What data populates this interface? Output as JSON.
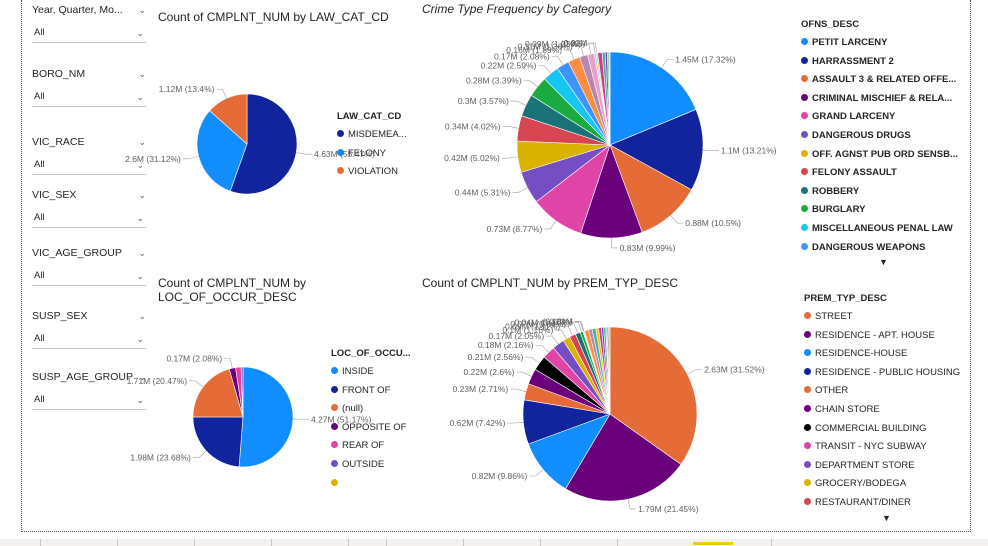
{
  "colors": {
    "accent": "#f2c811"
  },
  "slicers": [
    {
      "title": "Year, Quarter, Mo...",
      "value": "All",
      "top": 3
    },
    {
      "title": "BORO_NM",
      "value": "All",
      "top": 67
    },
    {
      "title": "VIC_RACE",
      "value": "All",
      "top": 135
    },
    {
      "title": "VIC_SEX",
      "value": "All",
      "top": 188
    },
    {
      "title": "VIC_AGE_GROUP",
      "value": "All",
      "top": 246
    },
    {
      "title": "SUSP_SEX",
      "value": "All",
      "top": 309
    },
    {
      "title": "SUSP_AGE_GROUP",
      "value": "All",
      "top": 370
    }
  ],
  "visuals": {
    "law_cat": {
      "title": "Count of CMPLNT_NUM by LAW_CAT_CD",
      "legend_title": "LAW_CAT_CD",
      "legend": [
        {
          "label": "MISDEMEA...",
          "color": "#12239E"
        },
        {
          "label": "FELONY",
          "color": "#118DFF"
        },
        {
          "label": "VIOLATION",
          "color": "#E66C37"
        }
      ]
    },
    "crime_type": {
      "title": "Crime Type Frequency by Category",
      "legend_title": "OFNS_DESC",
      "legend": [
        {
          "label": "PETIT LARCENY",
          "color": "#118DFF"
        },
        {
          "label": "HARRASSMENT 2",
          "color": "#12239E"
        },
        {
          "label": "ASSAULT 3 & RELATED OFFE...",
          "color": "#E66C37"
        },
        {
          "label": "CRIMINAL MISCHIEF & RELA...",
          "color": "#6B007B"
        },
        {
          "label": "GRAND LARCENY",
          "color": "#E044A7"
        },
        {
          "label": "DANGEROUS DRUGS",
          "color": "#744EC2"
        },
        {
          "label": "OFF. AGNST PUB ORD SENSB...",
          "color": "#D9B300"
        },
        {
          "label": "FELONY ASSAULT",
          "color": "#D64550"
        },
        {
          "label": "ROBBERY",
          "color": "#197278"
        },
        {
          "label": "BURGLARY",
          "color": "#1AAB40"
        },
        {
          "label": "MISCELLANEOUS PENAL LAW",
          "color": "#15C6F4"
        },
        {
          "label": "DANGEROUS WEAPONS",
          "color": "#4092FF"
        }
      ],
      "more_icon": "caret-down-icon"
    },
    "loc_occur": {
      "title_line1": "Count of CMPLNT_NUM by",
      "title_line2": "LOC_OF_OCCUR_DESC",
      "legend_title": "LOC_OF_OCCU...",
      "legend": [
        {
          "label": "INSIDE",
          "color": "#118DFF"
        },
        {
          "label": "FRONT OF",
          "color": "#12239E"
        },
        {
          "label": "(null)",
          "color": "#E66C37"
        },
        {
          "label": "OPPOSITE OF",
          "color": "#6B007B"
        },
        {
          "label": "REAR OF",
          "color": "#E044A7"
        },
        {
          "label": "OUTSIDE",
          "color": "#744EC2"
        },
        {
          "label": "",
          "color": "#D9B300"
        }
      ]
    },
    "prem_typ": {
      "title": "Count of CMPLNT_NUM by PREM_TYP_DESC",
      "legend_title": "PREM_TYP_DESC",
      "legend": [
        {
          "label": "STREET",
          "color": "#E66C37"
        },
        {
          "label": "RESIDENCE - APT. HOUSE",
          "color": "#6B007B"
        },
        {
          "label": "RESIDENCE-HOUSE",
          "color": "#118DFF"
        },
        {
          "label": "RESIDENCE - PUBLIC HOUSING",
          "color": "#12239E"
        },
        {
          "label": "OTHER",
          "color": "#E66C37"
        },
        {
          "label": "CHAIN STORE",
          "color": "#6B007B"
        },
        {
          "label": "COMMERCIAL BUILDING",
          "color": "#000000"
        },
        {
          "label": "TRANSIT - NYC SUBWAY",
          "color": "#E044A7"
        },
        {
          "label": "DEPARTMENT STORE",
          "color": "#744EC2"
        },
        {
          "label": "GROCERY/BODEGA",
          "color": "#D9B300"
        },
        {
          "label": "RESTAURANT/DINER",
          "color": "#D64550"
        }
      ],
      "more_icon": "caret-down-icon"
    }
  },
  "chart_data": [
    {
      "type": "pie",
      "title": "Count of CMPLNT_NUM by LAW_CAT_CD",
      "slices": [
        {
          "name": "MISDEMEANOR",
          "value": 4.63,
          "label": "4.63M (55.47%)",
          "color": "#12239E"
        },
        {
          "name": "FELONY",
          "value": 2.6,
          "label": "2.6M (31.12%)",
          "color": "#118DFF"
        },
        {
          "name": "VIOLATION",
          "value": 1.12,
          "label": "1.12M (13.4%)",
          "color": "#E66C37"
        }
      ]
    },
    {
      "type": "pie",
      "title": "Crime Type Frequency by Category",
      "slices": [
        {
          "value": 1.45,
          "label": "1.45M (17.32%)",
          "color": "#118DFF"
        },
        {
          "value": 1.1,
          "label": "1.1M (13.21%)",
          "color": "#12239E"
        },
        {
          "value": 0.88,
          "label": "0.88M (10.5%)",
          "color": "#E66C37"
        },
        {
          "value": 0.83,
          "label": "0.83M (9.99%)",
          "color": "#6B007B"
        },
        {
          "value": 0.73,
          "label": "0.73M (8.77%)",
          "color": "#E044A7"
        },
        {
          "value": 0.44,
          "label": "0.44M (5.31%)",
          "color": "#744EC2"
        },
        {
          "value": 0.42,
          "label": "0.42M (5.02%)",
          "color": "#D9B300"
        },
        {
          "value": 0.34,
          "label": "0.34M (4.02%)",
          "color": "#D64550"
        },
        {
          "value": 0.3,
          "label": "0.3M (3.57%)",
          "color": "#197278"
        },
        {
          "value": 0.28,
          "label": "0.28M (3.39%)",
          "color": "#1AAB40"
        },
        {
          "value": 0.22,
          "label": "0.22M (2.59%)",
          "color": "#15C6F4"
        },
        {
          "value": 0.17,
          "label": "0.17M (2.08%)",
          "color": "#4092FF"
        },
        {
          "value": 0.16,
          "label": "0.16M (1.89%)",
          "color": "#FF8C42"
        },
        {
          "value": 0.11,
          "label": "0.11M (1.36%)",
          "color": "#B887AD"
        },
        {
          "value": 0.09,
          "label": "0.09M (1.03%)",
          "color": "#E8A0C8"
        },
        {
          "value": 0.025,
          "label": "(0.3%)",
          "color": "#A0D1FF"
        },
        {
          "value": 0.02,
          "label": "0.02M",
          "color": "#F2C811"
        },
        {
          "value": 0.06,
          "label": "",
          "color": "#C83D95"
        },
        {
          "value": 0.04,
          "label": "",
          "color": "#42B0A0"
        },
        {
          "value": 0.03,
          "label": "",
          "color": "#7B3FBF"
        },
        {
          "value": 0.02,
          "label": "",
          "color": "#3FBE6B"
        },
        {
          "value": 0.015,
          "label": "",
          "color": "#E8C547"
        }
      ]
    },
    {
      "type": "pie",
      "title": "Count of CMPLNT_NUM by LOC_OF_OCCUR_DESC",
      "slices": [
        {
          "name": "INSIDE",
          "value": 4.27,
          "label": "4.27M (51.17%)",
          "color": "#118DFF"
        },
        {
          "name": "FRONT OF",
          "value": 1.98,
          "label": "1.98M (23.68%)",
          "color": "#12239E"
        },
        {
          "name": "(null)",
          "value": 1.71,
          "label": "1.71M (20.47%)",
          "color": "#E66C37"
        },
        {
          "name": "OPPOSITE OF",
          "value": 0.17,
          "label": "0.17M (2.08%)",
          "color": "#6B007B"
        },
        {
          "name": "REAR OF",
          "value": 0.15,
          "label": "",
          "color": "#E044A7"
        },
        {
          "name": "OUTSIDE",
          "value": 0.05,
          "label": "",
          "color": "#744EC2"
        }
      ]
    },
    {
      "type": "pie",
      "title": "Count of CMPLNT_NUM by PREM_TYP_DESC",
      "slices": [
        {
          "value": 2.63,
          "label": "2.63M (31.52%)",
          "color": "#E66C37"
        },
        {
          "value": 1.79,
          "label": "1.79M (21.45%)",
          "color": "#6B007B"
        },
        {
          "value": 0.82,
          "label": "0.82M (9.86%)",
          "color": "#118DFF"
        },
        {
          "value": 0.62,
          "label": "0.62M (7.42%)",
          "color": "#12239E"
        },
        {
          "value": 0.23,
          "label": "0.23M (2.71%)",
          "color": "#E66C37"
        },
        {
          "value": 0.22,
          "label": "0.22M (2.6%)",
          "color": "#6B007B"
        },
        {
          "value": 0.21,
          "label": "0.21M (2.56%)",
          "color": "#000000"
        },
        {
          "value": 0.18,
          "label": "0.18M (2.16%)",
          "color": "#E044A7"
        },
        {
          "value": 0.17,
          "label": "0.17M (2.05%)",
          "color": "#744EC2"
        },
        {
          "value": 0.1,
          "label": "0.1M (1.16%)",
          "color": "#D9B300"
        },
        {
          "value": 0.09,
          "label": "0.09M (1.11%)",
          "color": "#D64550"
        },
        {
          "value": 0.07,
          "label": "0.07M (0.84%)",
          "color": "#197278"
        },
        {
          "value": 0.04,
          "label": "0.04M (0.47%)",
          "color": "#1AAB40"
        },
        {
          "value": 0.011,
          "label": "(0.13%)",
          "color": "#15C6F4"
        },
        {
          "value": 0.01,
          "label": "0.01M",
          "color": "#4092FF"
        },
        {
          "value": 0.06,
          "label": "",
          "color": "#FF8C42"
        },
        {
          "value": 0.05,
          "label": "",
          "color": "#B887AD"
        },
        {
          "value": 0.05,
          "label": "",
          "color": "#42B0A0"
        },
        {
          "value": 0.04,
          "label": "",
          "color": "#F2C811"
        },
        {
          "value": 0.04,
          "label": "",
          "color": "#C83D95"
        },
        {
          "value": 0.03,
          "label": "",
          "color": "#7B3FBF"
        },
        {
          "value": 0.03,
          "label": "",
          "color": "#3FBE6B"
        },
        {
          "value": 0.02,
          "label": "",
          "color": "#A0D1FF"
        },
        {
          "value": 0.02,
          "label": "",
          "color": "#8A6D3B"
        },
        {
          "value": 0.02,
          "label": "",
          "color": "#E8A0C8"
        }
      ]
    }
  ]
}
